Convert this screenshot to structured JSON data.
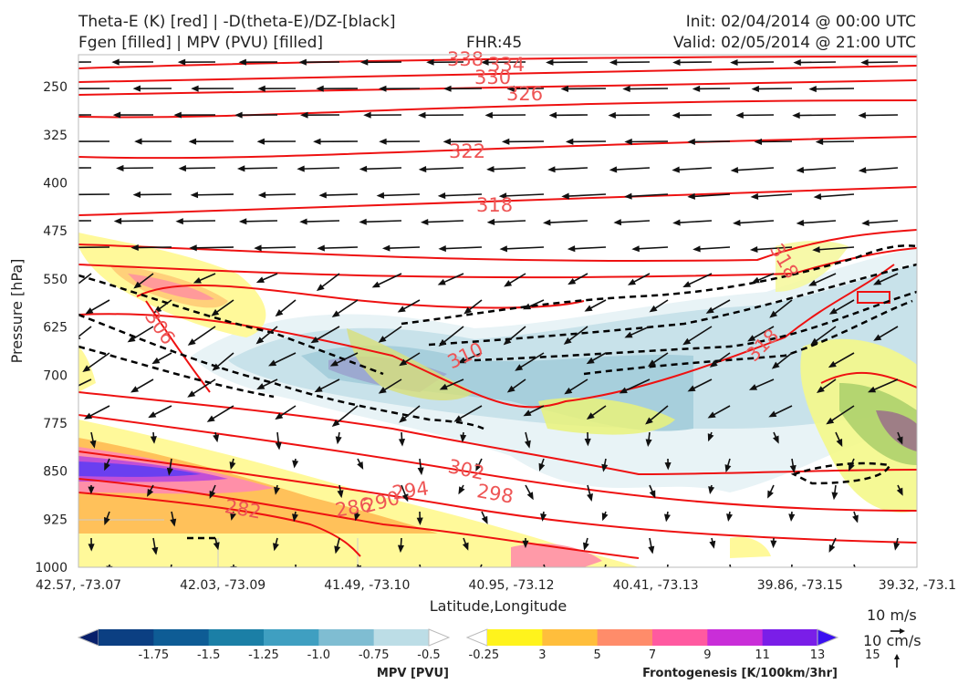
{
  "header": {
    "title_left_1": "Theta-E (K) [red] | -D(theta-E)/DZ-[black]",
    "title_left_2": "Fgen [filled] | MPV (PVU) [filled]",
    "fhr": "FHR:45",
    "init": "Init: 02/04/2014 @ 00:00 UTC",
    "valid": "Valid: 02/05/2014 @ 21:00 UTC"
  },
  "chart_data": {
    "type": "cross-section",
    "xlabel": "Latitude,Longitude",
    "ylabel": "Pressure [hPa]",
    "x_ticks": [
      "42.57, -73.07",
      "42.03, -73.09",
      "41.49, -73.10",
      "40.95, -73.12",
      "40.41, -73.13",
      "39.86, -73.15",
      "39.32, -73.1"
    ],
    "y_ticks": [
      250,
      325,
      400,
      475,
      550,
      625,
      700,
      775,
      850,
      925,
      1000
    ],
    "ylim": [
      200,
      1000
    ],
    "y_inverted": true,
    "theta_e_contour_labels": [
      338,
      334,
      330,
      326,
      322,
      318,
      318,
      318,
      310,
      306,
      302,
      298,
      294,
      290,
      286,
      282
    ],
    "mpv_colorbar": {
      "title": "MPV [PVU]",
      "tick_labels": [
        "-1.75",
        "-1.5",
        "-1.25",
        "-1.0",
        "-0.75",
        "-0.5",
        "-0.25"
      ],
      "colors": [
        "#08206b",
        "#0b3f82",
        "#0e5c95",
        "#1b7fa6",
        "#3f9fc1",
        "#7fbdd2",
        "#bcdde6",
        "#ffffff"
      ]
    },
    "fgen_colorbar": {
      "title": "Frontogenesis [K/100km/3hr]",
      "tick_labels": [
        "3",
        "5",
        "7",
        "9",
        "11",
        "13",
        "15"
      ],
      "colors": [
        "#ffffff",
        "#fff31c",
        "#ffbe3c",
        "#ff8c6a",
        "#ff5aa0",
        "#c92ed8",
        "#7a1ee8",
        "#3a10f0"
      ]
    },
    "vector_key": {
      "label_1": "10 m/s",
      "label_2": "10 cm/s"
    }
  }
}
